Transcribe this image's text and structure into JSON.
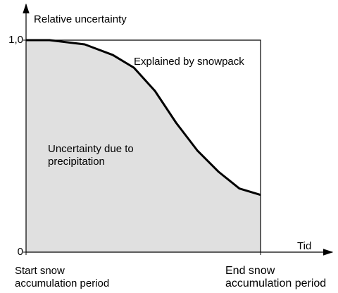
{
  "chart_data": {
    "type": "area",
    "y_label": "Relative uncertainty",
    "x_label": "Tid",
    "annotations": [
      "Explained by snowpack",
      "Uncertainty due to\nprecipitation"
    ],
    "x": [
      0,
      0.1,
      0.25,
      0.37,
      0.46,
      0.55,
      0.64,
      0.73,
      0.82,
      0.91,
      1.0
    ],
    "values": [
      1.0,
      1.0,
      0.98,
      0.93,
      0.87,
      0.76,
      0.61,
      0.48,
      0.38,
      0.3,
      0.27
    ],
    "color": "#000000",
    "fill": "#e0e0e0",
    "xlim": [
      0,
      1
    ],
    "ylim": [
      0,
      1
    ],
    "xticks": [
      {
        "value": 0,
        "label": "Start snow\naccumulation period"
      },
      {
        "value": 1,
        "label": "End snow\naccumulation period"
      }
    ],
    "yticks": [
      0,
      {
        "value": 1,
        "label": "1,0"
      }
    ]
  }
}
